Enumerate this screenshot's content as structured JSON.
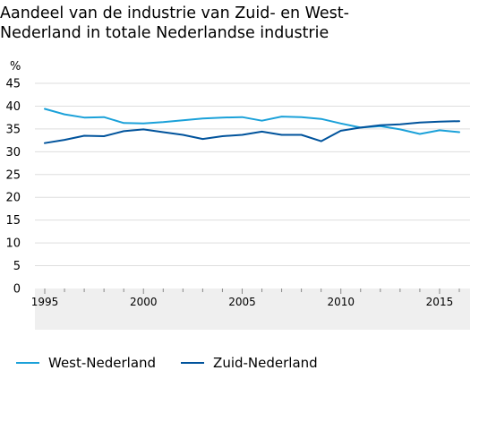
{
  "chart_data": {
    "type": "line",
    "title": "Aandeel van de industrie van Zuid- en West-\nNederland in totale Nederlandse industrie",
    "ylabel": "%",
    "xlabel": "",
    "ylim": [
      0,
      45
    ],
    "yticks": [
      "0",
      "5",
      "10",
      "15",
      "20",
      "25",
      "30",
      "35",
      "40",
      "45"
    ],
    "xticks": [
      "1995",
      "2000",
      "2005",
      "2010",
      "2015"
    ],
    "xlim": [
      1995,
      2016
    ],
    "grid": true,
    "legend_position": "bottom",
    "x": [
      1995,
      1996,
      1997,
      1998,
      1999,
      2000,
      2001,
      2002,
      2003,
      2004,
      2005,
      2006,
      2007,
      2008,
      2009,
      2010,
      2011,
      2012,
      2013,
      2014,
      2015,
      2016
    ],
    "series": [
      {
        "name": "West-Nederland",
        "color": "#1ba1d9",
        "values": [
          39.4,
          38.2,
          37.5,
          37.6,
          36.3,
          36.2,
          36.5,
          36.9,
          37.3,
          37.5,
          37.6,
          36.8,
          37.7,
          37.6,
          37.2,
          36.2,
          35.3,
          35.6,
          34.9,
          33.9,
          34.7,
          34.3
        ]
      },
      {
        "name": "Zuid-Nederland",
        "color": "#00539c",
        "values": [
          31.9,
          32.6,
          33.5,
          33.4,
          34.5,
          34.9,
          34.3,
          33.7,
          32.8,
          33.4,
          33.7,
          34.4,
          33.7,
          33.7,
          32.3,
          34.6,
          35.3,
          35.8,
          36.0,
          36.4,
          36.6,
          36.7
        ]
      }
    ]
  }
}
